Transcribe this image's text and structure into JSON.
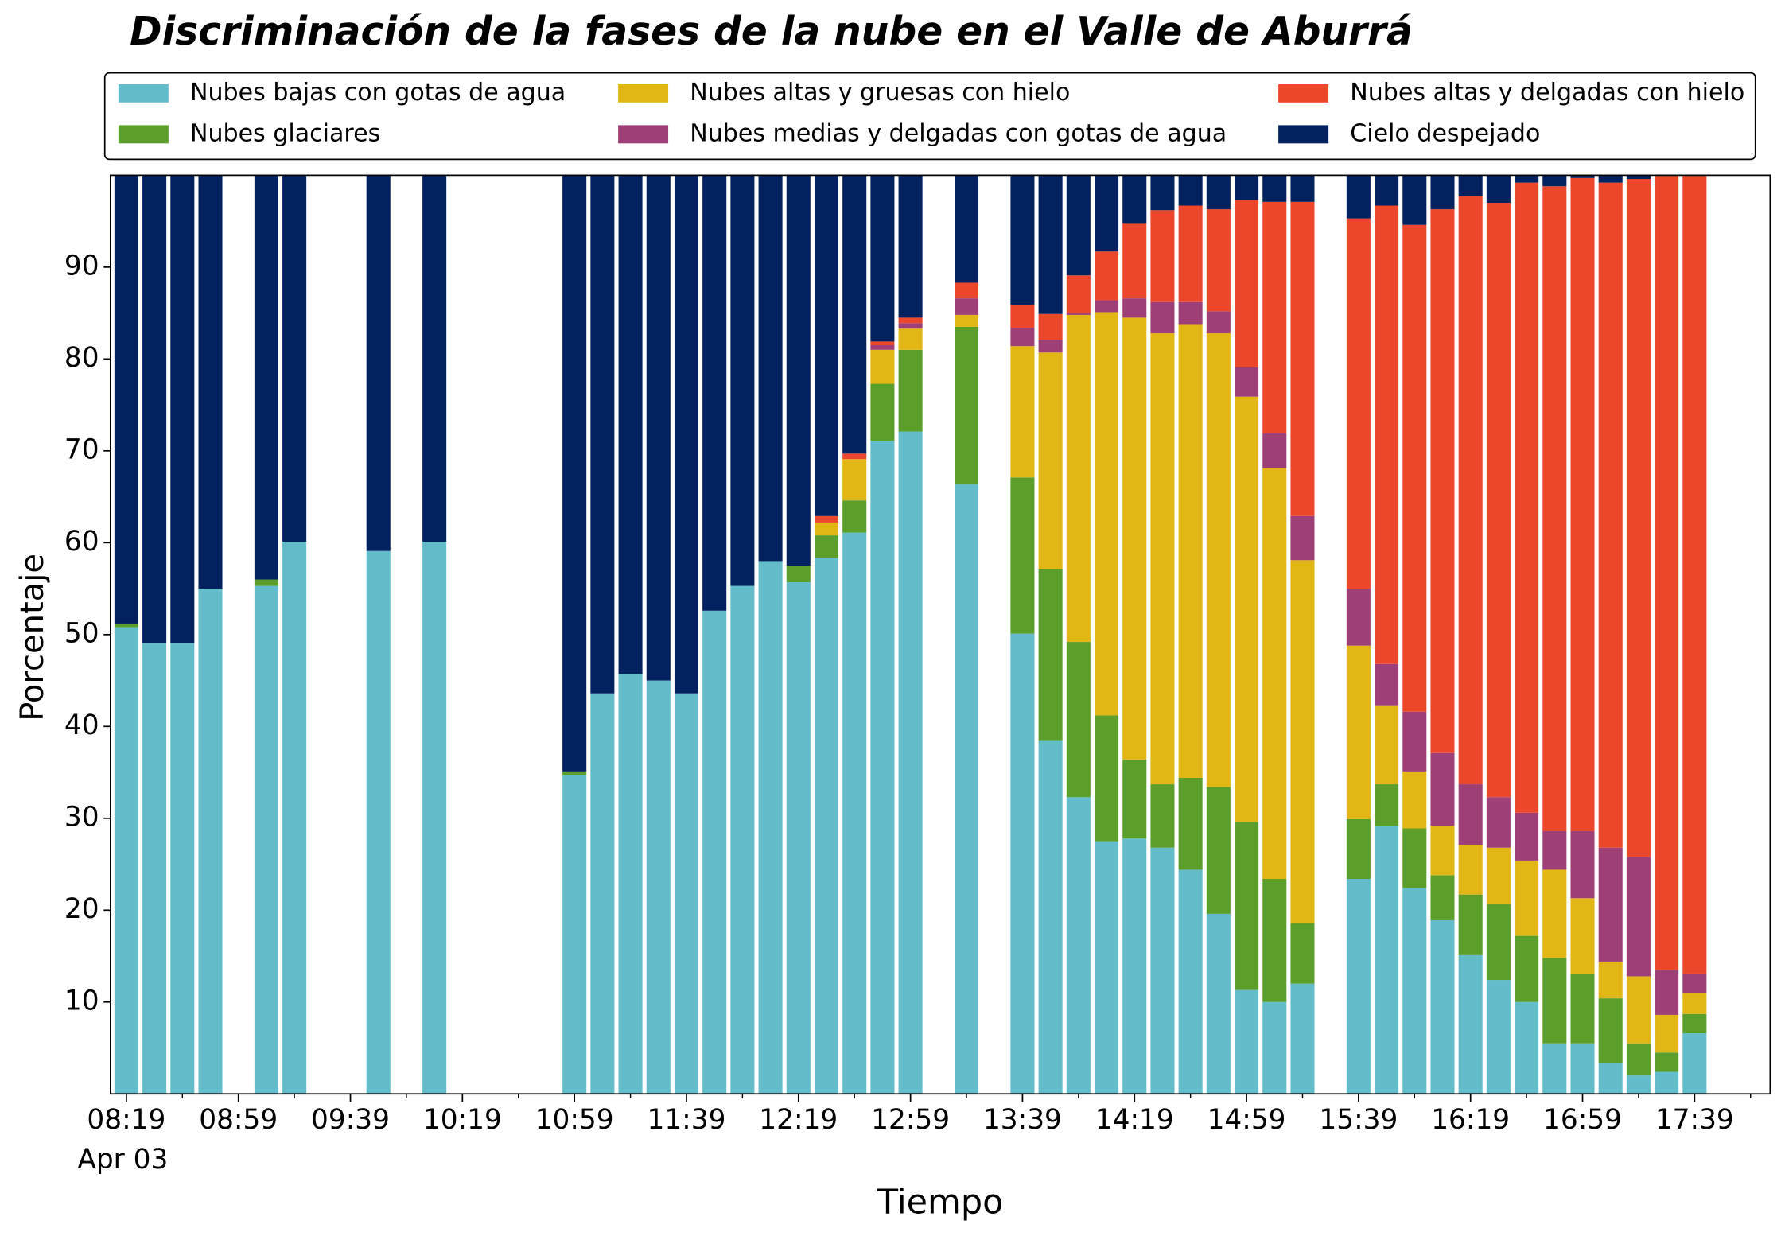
{
  "chart_data": {
    "type": "stacked_bar",
    "title": "Discriminación de la fases de la nube en el Valle de Aburrá",
    "xlabel": "Tiempo",
    "ylabel": "Porcentaje",
    "date_label": "Apr 03",
    "categories": [
      "08:19",
      null,
      null,
      null,
      "08:59",
      null,
      null,
      null,
      "09:39",
      null,
      null,
      null,
      "10:19",
      null,
      null,
      null,
      "10:59",
      null,
      null,
      null,
      "11:39",
      null,
      null,
      null,
      "12:19",
      null,
      null,
      null,
      "12:59",
      null,
      null,
      null,
      "13:39",
      null,
      null,
      null,
      "14:19",
      null,
      null,
      null,
      "14:59",
      null,
      null,
      null,
      "15:39",
      null,
      null,
      null,
      "16:19",
      null,
      null,
      null,
      "16:59",
      null,
      null,
      null,
      "17:39"
    ],
    "ylim": [
      0,
      100
    ],
    "yticks": [
      10,
      20,
      30,
      40,
      50,
      60,
      70,
      80,
      90
    ],
    "legend": "top",
    "series": [
      {
        "name": "Nubes bajas con gotas de agua",
        "color": "#62bcc9",
        "values": [
          50.8,
          49.1,
          49.1,
          55.0,
          null,
          55.3,
          60.1,
          null,
          null,
          59.1,
          null,
          60.1,
          null,
          null,
          null,
          null,
          34.7,
          43.6,
          45.7,
          45.0,
          43.6,
          52.6,
          55.3,
          58.0,
          55.7,
          58.3,
          61.1,
          71.1,
          72.1,
          null,
          66.4,
          null,
          50.1,
          38.5,
          32.3,
          27.5,
          27.8,
          26.8,
          24.4,
          19.6,
          11.3,
          10.0,
          12.0,
          null,
          23.4,
          29.2,
          22.4,
          18.9,
          15.1,
          12.4,
          10.0,
          5.5,
          5.5,
          3.4,
          2.0,
          2.4,
          6.6
        ]
      },
      {
        "name": "Nubes glaciares",
        "color": "#5b9e2a",
        "values": [
          0.4,
          0,
          0,
          0,
          null,
          0.7,
          0,
          null,
          null,
          0,
          null,
          0,
          null,
          null,
          null,
          null,
          0.4,
          0,
          0,
          0,
          0,
          0,
          0,
          0,
          1.8,
          2.5,
          3.5,
          6.2,
          8.9,
          null,
          17.1,
          null,
          17.0,
          18.6,
          16.9,
          13.7,
          8.6,
          6.9,
          10.0,
          13.8,
          18.3,
          13.4,
          6.6,
          null,
          6.5,
          4.5,
          6.5,
          4.9,
          6.6,
          8.3,
          7.2,
          9.3,
          7.6,
          7.0,
          3.5,
          2.1,
          2.1
        ]
      },
      {
        "name": "Nubes altas y gruesas con hielo",
        "color": "#e2b614",
        "values": [
          0,
          0,
          0,
          0,
          null,
          0,
          0,
          null,
          null,
          0,
          null,
          0,
          null,
          null,
          null,
          null,
          0,
          0,
          0,
          0,
          0,
          0,
          0,
          0,
          0,
          1.4,
          4.5,
          3.7,
          2.3,
          null,
          1.3,
          null,
          14.3,
          23.6,
          35.6,
          43.9,
          48.1,
          49.1,
          49.4,
          49.4,
          46.3,
          44.7,
          39.5,
          null,
          18.9,
          8.6,
          6.2,
          5.4,
          5.4,
          6.1,
          8.2,
          9.6,
          8.2,
          4.0,
          7.3,
          4.1,
          2.3
        ]
      },
      {
        "name": "Nubes medias y delgadas con gotas de agua",
        "color": "#9e3f78",
        "values": [
          0,
          0,
          0,
          0,
          null,
          0,
          0,
          null,
          null,
          0,
          null,
          0,
          null,
          null,
          null,
          null,
          0,
          0,
          0,
          0,
          0,
          0,
          0,
          0,
          0,
          0,
          0,
          0.5,
          0.6,
          null,
          1.8,
          null,
          2.0,
          1.4,
          0.2,
          1.3,
          2.1,
          3.4,
          2.4,
          2.4,
          3.2,
          3.8,
          4.8,
          null,
          6.2,
          4.5,
          6.5,
          7.9,
          6.6,
          5.5,
          5.2,
          4.2,
          7.3,
          12.4,
          13.0,
          4.9,
          2.1
        ]
      },
      {
        "name": "Nubes altas y delgadas con hielo",
        "color": "#ec472b",
        "values": [
          0,
          0,
          0,
          0,
          null,
          0,
          0,
          null,
          null,
          0,
          null,
          0,
          null,
          null,
          null,
          null,
          0,
          0,
          0,
          0,
          0,
          0,
          0,
          0,
          0,
          0.7,
          0.6,
          0.4,
          0.6,
          null,
          1.7,
          null,
          2.5,
          2.8,
          4.1,
          5.3,
          8.2,
          10.0,
          10.5,
          11.1,
          18.2,
          25.2,
          34.2,
          null,
          40.3,
          49.9,
          53.0,
          59.2,
          64.0,
          64.7,
          68.6,
          70.2,
          71.1,
          72.4,
          73.8,
          86.5,
          86.9
        ]
      },
      {
        "name": "Cielo despejado",
        "color": "#03205f",
        "values": [
          48.8,
          50.9,
          50.9,
          45.0,
          null,
          44.0,
          39.9,
          null,
          null,
          40.9,
          null,
          39.9,
          null,
          null,
          null,
          null,
          64.9,
          56.4,
          54.3,
          55.0,
          56.4,
          47.4,
          44.7,
          42.0,
          42.5,
          37.1,
          30.3,
          18.1,
          15.5,
          null,
          11.7,
          null,
          14.1,
          15.1,
          10.9,
          8.3,
          5.2,
          3.8,
          3.3,
          3.7,
          2.7,
          2.9,
          2.9,
          null,
          4.7,
          3.3,
          5.4,
          3.7,
          2.3,
          3.0,
          0.8,
          1.2,
          0.3,
          0.8,
          0.4,
          0,
          0
        ]
      }
    ]
  }
}
